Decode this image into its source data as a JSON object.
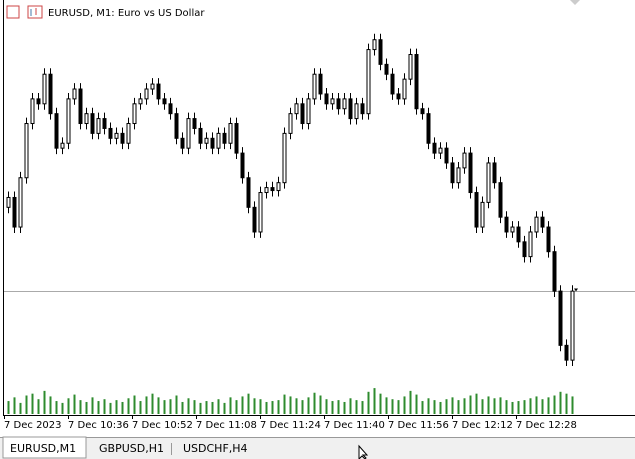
{
  "window": {
    "icons": "chart",
    "title": "EURUSD, M1:  Euro vs US Dollar"
  },
  "chart_data": {
    "type": "candlestick",
    "open": [
      195,
      205,
      175,
      225,
      280,
      305,
      300,
      330,
      290,
      255,
      260,
      305,
      315,
      280,
      290,
      270,
      285,
      275,
      265,
      270,
      260,
      280,
      300,
      305,
      315,
      320,
      305,
      300,
      290,
      265,
      255,
      285,
      275,
      260,
      265,
      255,
      270,
      260,
      280,
      250,
      225,
      195,
      170,
      210,
      215,
      212,
      220,
      270,
      290,
      300,
      280,
      305,
      330,
      310,
      300,
      305,
      295,
      305,
      285,
      300,
      290,
      355,
      365,
      340,
      330,
      310,
      305,
      325,
      350,
      295,
      290,
      260,
      250,
      255,
      240,
      220,
      235,
      250,
      210,
      175,
      200,
      240,
      220,
      185,
      170,
      175,
      160,
      145,
      170,
      185,
      175,
      150,
      110,
      55,
      40
    ],
    "high": [
      211,
      211,
      231,
      286,
      311,
      311,
      336,
      336,
      296,
      266,
      311,
      321,
      321,
      296,
      296,
      291,
      291,
      281,
      276,
      276,
      286,
      306,
      311,
      321,
      326,
      326,
      311,
      306,
      296,
      271,
      291,
      291,
      281,
      271,
      271,
      276,
      276,
      286,
      286,
      256,
      231,
      201,
      216,
      221,
      221,
      226,
      276,
      296,
      306,
      306,
      311,
      336,
      336,
      316,
      311,
      311,
      311,
      311,
      306,
      306,
      361,
      371,
      371,
      346,
      336,
      316,
      331,
      356,
      356,
      301,
      296,
      266,
      261,
      261,
      246,
      241,
      256,
      256,
      216,
      206,
      246,
      246,
      226,
      191,
      181,
      181,
      166,
      176,
      191,
      191,
      181,
      156,
      116,
      61,
      116
    ],
    "low": [
      189,
      169,
      169,
      219,
      274,
      294,
      294,
      284,
      249,
      249,
      254,
      299,
      274,
      274,
      264,
      264,
      269,
      259,
      259,
      254,
      254,
      274,
      294,
      299,
      309,
      299,
      294,
      284,
      259,
      249,
      249,
      269,
      254,
      254,
      249,
      249,
      254,
      254,
      244,
      219,
      189,
      164,
      164,
      204,
      206,
      206,
      214,
      264,
      284,
      274,
      274,
      299,
      304,
      294,
      294,
      289,
      289,
      279,
      279,
      284,
      284,
      349,
      334,
      324,
      304,
      299,
      299,
      319,
      289,
      284,
      254,
      244,
      244,
      234,
      214,
      214,
      229,
      204,
      169,
      169,
      194,
      214,
      179,
      164,
      164,
      154,
      139,
      139,
      164,
      169,
      144,
      104,
      49,
      34,
      34
    ],
    "close": [
      205,
      175,
      225,
      280,
      305,
      300,
      330,
      290,
      255,
      260,
      305,
      315,
      280,
      290,
      270,
      285,
      275,
      265,
      270,
      260,
      280,
      300,
      305,
      315,
      320,
      305,
      300,
      290,
      265,
      255,
      285,
      275,
      260,
      265,
      255,
      270,
      260,
      280,
      250,
      225,
      195,
      170,
      210,
      215,
      212,
      220,
      270,
      290,
      300,
      280,
      305,
      330,
      310,
      300,
      305,
      295,
      305,
      285,
      300,
      290,
      355,
      365,
      340,
      330,
      310,
      305,
      325,
      350,
      295,
      290,
      260,
      250,
      255,
      240,
      220,
      235,
      250,
      210,
      175,
      200,
      240,
      220,
      185,
      170,
      175,
      160,
      145,
      170,
      185,
      175,
      150,
      110,
      55,
      40,
      110
    ],
    "volume": [
      14,
      18,
      12,
      20,
      22,
      16,
      25,
      19,
      14,
      12,
      17,
      21,
      15,
      13,
      18,
      14,
      16,
      12,
      15,
      13,
      17,
      20,
      14,
      19,
      22,
      18,
      15,
      16,
      20,
      13,
      17,
      15,
      12,
      14,
      13,
      16,
      12,
      18,
      15,
      19,
      22,
      17,
      16,
      13,
      14,
      15,
      21,
      19,
      17,
      15,
      18,
      23,
      20,
      16,
      14,
      15,
      13,
      17,
      15,
      14,
      24,
      28,
      22,
      18,
      16,
      15,
      19,
      25,
      21,
      14,
      17,
      15,
      13,
      16,
      18,
      15,
      17,
      20,
      22,
      16,
      19,
      17,
      18,
      15,
      13,
      14,
      15,
      17,
      19,
      16,
      18,
      20,
      24,
      22,
      19
    ],
    "ylim": [
      30,
      385
    ],
    "vlim": [
      0,
      40
    ],
    "x_labels": [
      "7 Dec 2023",
      "7 Dec 10:36",
      "7 Dec 10:52",
      "7 Dec 11:08",
      "7 Dec 11:24",
      "7 Dec 11:40",
      "7 Dec 11:56",
      "7 Dec 12:12",
      "7 Dec 12:28"
    ],
    "volume_color": "#2e8b2e",
    "up_color": "#ffffff",
    "down_color": "#000000"
  },
  "tabs": [
    "EURUSD,M1",
    "GBPUSD,H1",
    "USDCHF,H4"
  ]
}
